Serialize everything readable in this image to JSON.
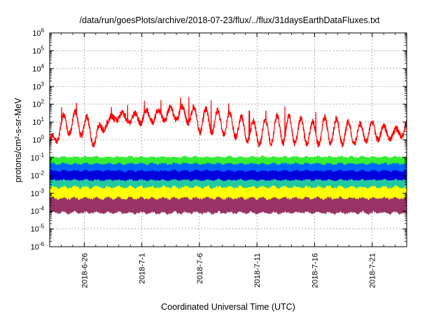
{
  "chart_data": {
    "type": "line",
    "title": "/data/run/goesPlots/archive/2018-07-23/flux/../flux/31daysEarthDataFluxes.txt",
    "xlabel": "Coordinated Universal Time (UTC)",
    "ylabel": "protons/cm²-s-sr-MeV",
    "yscale": "log",
    "ylim": [
      1e-06,
      1000000.0
    ],
    "xlim": [
      "2018-06-23",
      "2018-07-24"
    ],
    "grid": true,
    "legend": "none",
    "y_ticks": [
      {
        "base": "10",
        "exp": "-6"
      },
      {
        "base": "10",
        "exp": "-5"
      },
      {
        "base": "10",
        "exp": "-4"
      },
      {
        "base": "10",
        "exp": "-3"
      },
      {
        "base": "10",
        "exp": "-2"
      },
      {
        "base": "10",
        "exp": "-1"
      },
      {
        "base": "10",
        "exp": "0"
      },
      {
        "base": "10",
        "exp": "1"
      },
      {
        "base": "10",
        "exp": "2"
      },
      {
        "base": "10",
        "exp": "3"
      },
      {
        "base": "10",
        "exp": "4"
      },
      {
        "base": "10",
        "exp": "5"
      },
      {
        "base": "10",
        "exp": "6"
      }
    ],
    "x_ticks": [
      {
        "label": "2018-6-26",
        "date": "2018-06-26"
      },
      {
        "label": "2018-7-1",
        "date": "2018-07-01"
      },
      {
        "label": "2018-7-6",
        "date": "2018-07-06"
      },
      {
        "label": "2018-7-11",
        "date": "2018-07-11"
      },
      {
        "label": "2018-7-16",
        "date": "2018-07-16"
      },
      {
        "label": "2018-7-21",
        "date": "2018-07-21"
      }
    ],
    "series": [
      {
        "color": "#ff0000",
        "x": [
          "2018-06-23",
          "2018-06-24",
          "2018-06-25",
          "2018-06-26",
          "2018-06-27",
          "2018-06-28",
          "2018-06-29",
          "2018-06-30",
          "2018-07-01",
          "2018-07-02",
          "2018-07-03",
          "2018-07-04",
          "2018-07-05",
          "2018-07-06",
          "2018-07-07",
          "2018-07-08",
          "2018-07-09",
          "2018-07-10",
          "2018-07-11",
          "2018-07-12",
          "2018-07-13",
          "2018-07-14",
          "2018-07-15",
          "2018-07-16",
          "2018-07-17",
          "2018-07-18",
          "2018-07-19",
          "2018-07-20",
          "2018-07-21",
          "2018-07-22",
          "2018-07-23",
          "2018-07-24"
        ],
        "values": [
          1,
          20,
          40,
          30,
          5,
          15,
          40,
          25,
          50,
          40,
          60,
          70,
          80,
          60,
          50,
          40,
          30,
          15,
          10,
          15,
          25,
          20,
          15,
          10,
          20,
          15,
          10,
          8,
          10,
          6,
          4,
          10
        ],
        "min": [
          0.1,
          0.5,
          0.5,
          0.3,
          0.1,
          5,
          8,
          5,
          3,
          5,
          5,
          5,
          3,
          0.5,
          0.5,
          0.5,
          0.3,
          0.2,
          0.1,
          0.1,
          0.1,
          0.1,
          0.1,
          0.1,
          0.1,
          0.1,
          0.1,
          0.15,
          0.3,
          0.4,
          0.5,
          1
        ]
      },
      {
        "color": "#33ee33",
        "range": [
          0.03,
          0.12
        ]
      },
      {
        "color": "#0066ff",
        "range": [
          0.01,
          0.05
        ]
      },
      {
        "color": "#0000dd",
        "range": [
          0.004,
          0.02
        ]
      },
      {
        "color": "#22c8a0",
        "range": [
          0.0015,
          0.006
        ]
      },
      {
        "color": "#ffff00",
        "range": [
          0.0003,
          0.0025
        ]
      },
      {
        "color": "#993366",
        "range": [
          7e-05,
          0.0006
        ]
      }
    ]
  }
}
